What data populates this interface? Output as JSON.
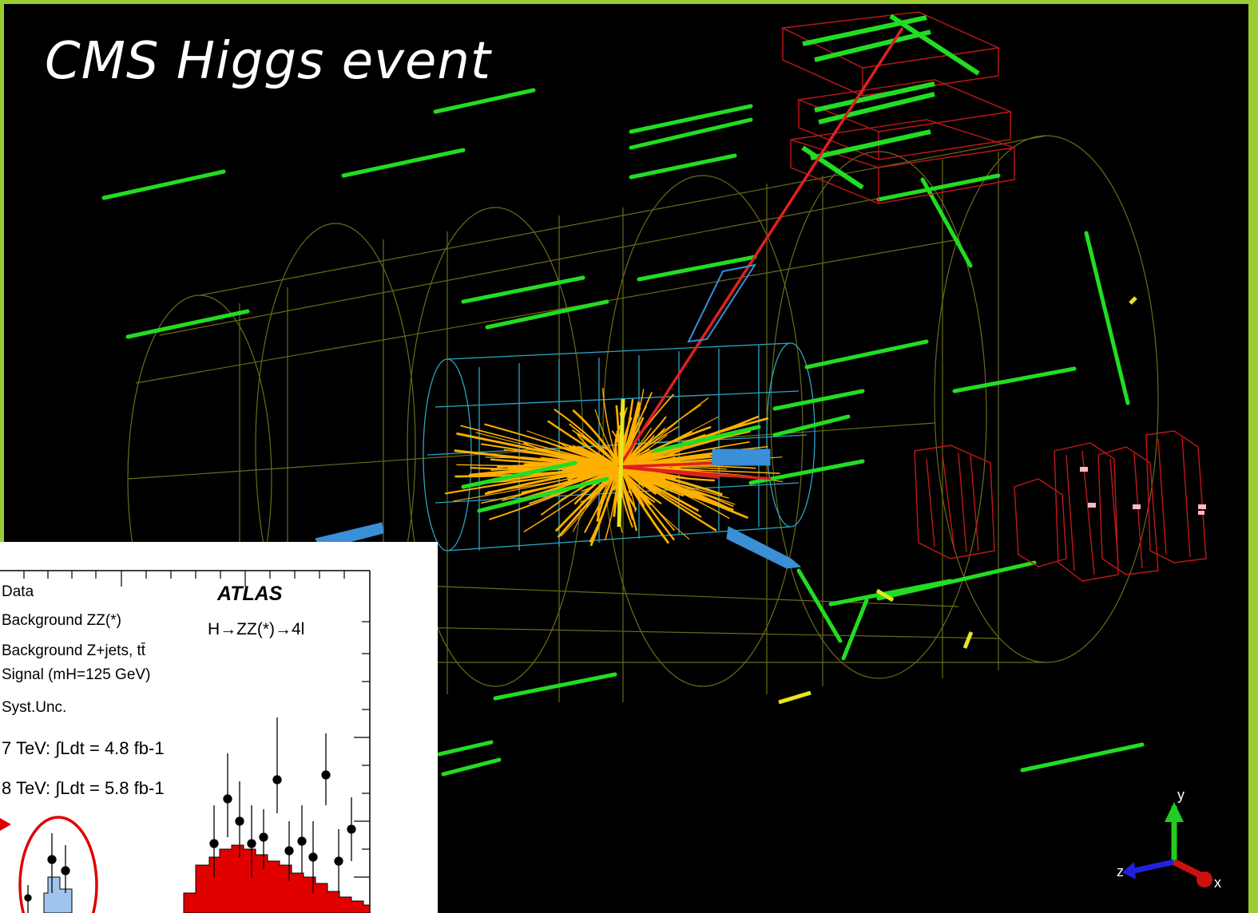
{
  "title": "CMS Higgs event",
  "colors": {
    "border": "#9acd32",
    "mesh": "#6b6b1a",
    "tracker": "#2aa6c4",
    "tracks": "#ffb000",
    "muon": "#e02020",
    "hits": "#22dd22",
    "signal": "#9fc5ee",
    "background": "#e00000"
  },
  "axes_gizmo": {
    "y": "y",
    "z": "z",
    "x": "x"
  },
  "inset": {
    "experiment": "ATLAS",
    "channel": "H→ZZ(*)→4l",
    "legend": [
      "Data",
      "Background ZZ(*)",
      "Background Z+jets, tt̄",
      "Signal (mH=125 GeV)",
      "Syst.Unc."
    ],
    "lumi": [
      "7 TeV: ∫Ldt = 4.8 fb-1",
      "8 TeV: ∫Ldt = 5.8 fb-1"
    ]
  }
}
